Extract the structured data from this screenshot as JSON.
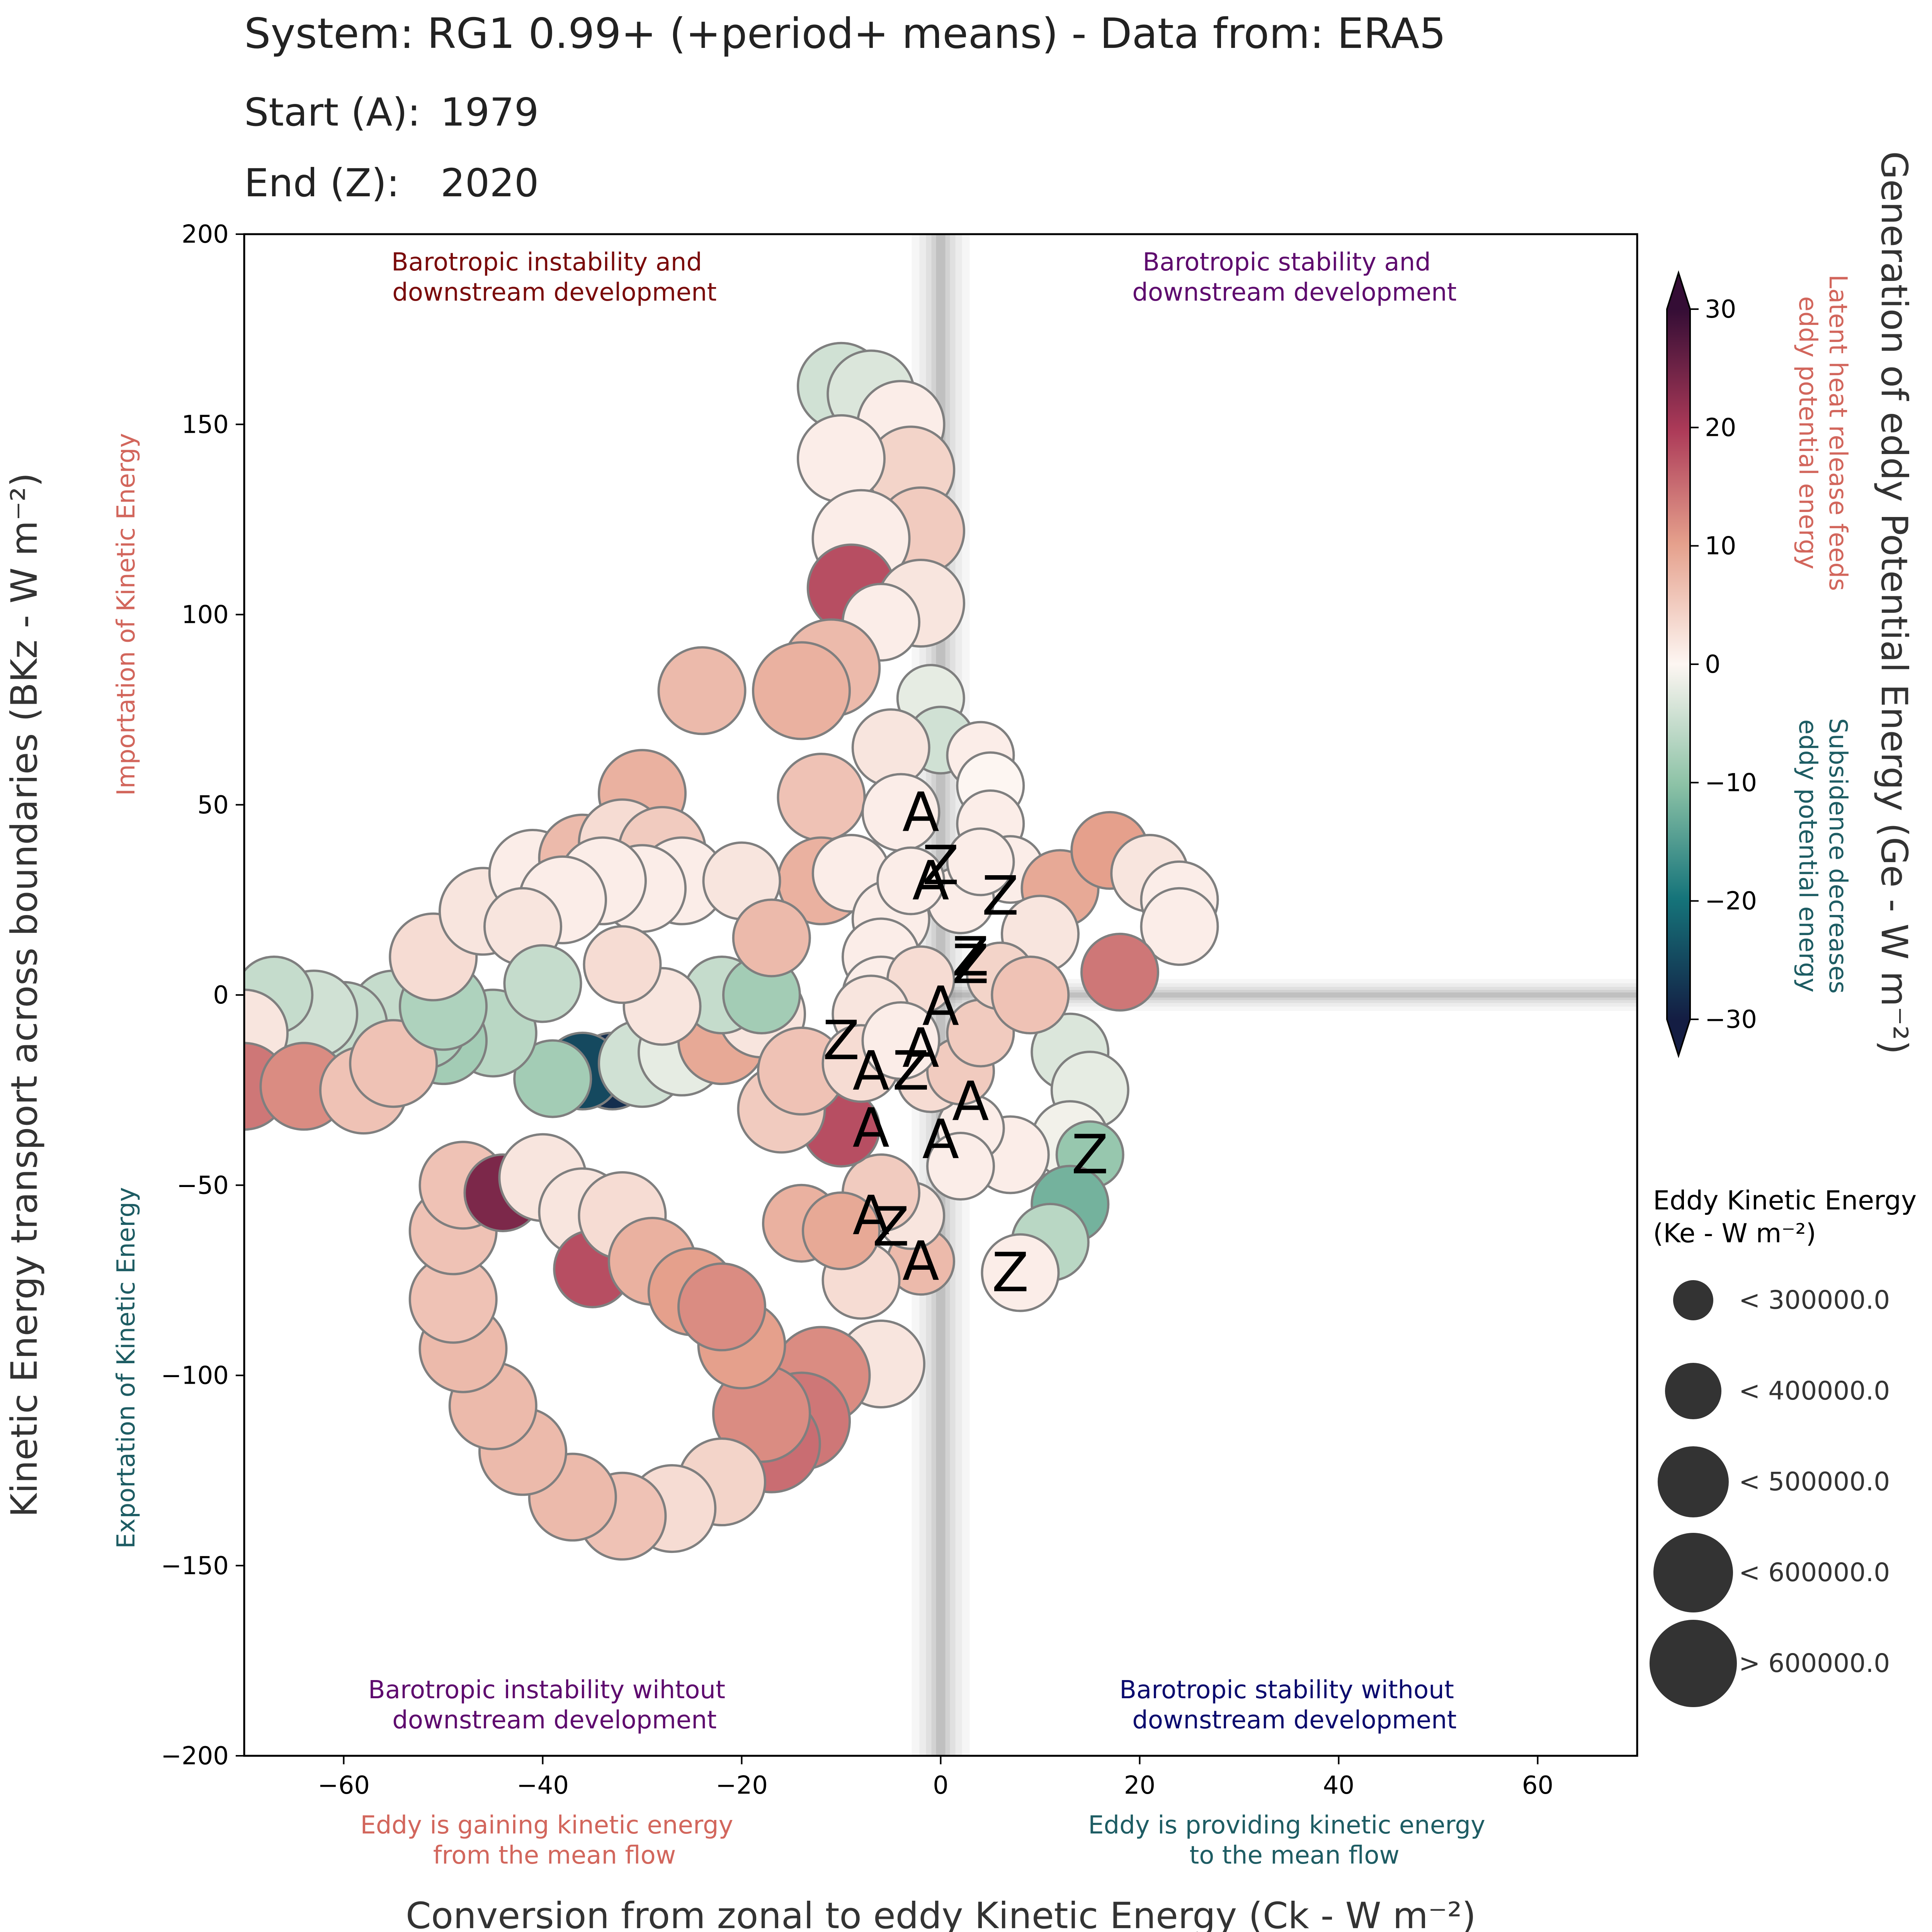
{
  "header": {
    "title": "System: RG1 0.99+ (+period+ means) - Data from: ERA5",
    "start_label": "Start (A):",
    "start_value": "1979",
    "end_label": "End (Z):",
    "end_value": "2020"
  },
  "chart_data": {
    "type": "scatter",
    "xlabel": "Conversion from zonal to eddy Kinetic Energy (Ck - W m⁻²)",
    "ylabel": "Kinetic Energy transport across boundaries (BKz - W m⁻²)",
    "xlim": [
      -70,
      70
    ],
    "ylim": [
      -200,
      200
    ],
    "x_ticks": [
      -60,
      -40,
      -20,
      0,
      20,
      40,
      60
    ],
    "x_tick_labels": [
      "−60",
      "−40",
      "−20",
      "0",
      "20",
      "40",
      "60"
    ],
    "y_ticks": [
      -200,
      -150,
      -100,
      -50,
      0,
      50,
      100,
      150,
      200
    ],
    "y_tick_labels": [
      "−200",
      "−150",
      "−100",
      "−50",
      "0",
      "50",
      "100",
      "150",
      "200"
    ],
    "grid": false,
    "quadrant_labels": {
      "top_left": [
        "Barotropic instability and",
        "downstream development"
      ],
      "top_right": [
        "Barotropic stability and",
        "downstream development"
      ],
      "bottom_left": [
        "Barotropic instability wihtout",
        "downstream development"
      ],
      "bottom_right": [
        "Barotropic stability without",
        "downstream development"
      ]
    },
    "side_labels": {
      "y_positive": "Importation of Kinetic Energy",
      "y_negative": "Exportation of Kinetic Energy",
      "x_negative": [
        "Eddy is gaining kinetic energy",
        "from the mean flow"
      ],
      "x_positive": [
        "Eddy is providing kinetic energy",
        "to the mean flow"
      ]
    },
    "colorbar": {
      "label": "Generation of eddy Potential Energy (Ge - W m⁻²)",
      "vmin": -30,
      "vmax": 30,
      "ticks": [
        -30,
        -20,
        -10,
        0,
        10,
        20,
        30
      ],
      "tick_labels": [
        "−30",
        "−20",
        "−10",
        "0",
        "10",
        "20",
        "30"
      ],
      "colormap": "curl (teal–white–red)",
      "positive_note": [
        "Latent heat release feeds",
        "eddy potential energy"
      ],
      "negative_note": [
        "Subsidence decreases",
        "eddy potential energy"
      ]
    },
    "size_legend": {
      "title": [
        "Eddy Kinetic Energy",
        "(Ke - W m⁻²)"
      ],
      "entries": [
        "< 300000.0",
        "< 400000.0",
        "< 500000.0",
        "< 600000.0",
        "> 600000.0"
      ]
    },
    "colors": {
      "positive_text": "#d2665c",
      "negative_text": "#1d5c63",
      "quad_top_left": "#7a0a0a",
      "quad_top_right": "#5e0a6e",
      "quad_bottom_left": "#5e0a6e",
      "quad_bottom_right": "#0a0a6e"
    },
    "series": [
      {
        "points": [
          {
            "x": -10,
            "y": 160,
            "ge": -4,
            "size": 4
          },
          {
            "x": -7,
            "y": 158,
            "ge": -3,
            "size": 4
          },
          {
            "x": -4,
            "y": 150,
            "ge": 1,
            "size": 4
          },
          {
            "x": -3,
            "y": 138,
            "ge": 4,
            "size": 4
          },
          {
            "x": -10,
            "y": 141,
            "ge": 1,
            "size": 4
          },
          {
            "x": -2,
            "y": 122,
            "ge": 5,
            "size": 4
          },
          {
            "x": -8,
            "y": 120,
            "ge": 1,
            "size": 5
          },
          {
            "x": -9,
            "y": 107,
            "ge": 18,
            "size": 4
          },
          {
            "x": -2,
            "y": 103,
            "ge": 2,
            "size": 4
          },
          {
            "x": -6,
            "y": 98,
            "ge": 1,
            "size": 3
          },
          {
            "x": -11,
            "y": 86,
            "ge": 7,
            "size": 5
          },
          {
            "x": -14,
            "y": 80,
            "ge": 8,
            "size": 5
          },
          {
            "x": -24,
            "y": 80,
            "ge": 7,
            "size": 4
          },
          {
            "x": -30,
            "y": 53,
            "ge": 8,
            "size": 4
          },
          {
            "x": -12,
            "y": 52,
            "ge": 6,
            "size": 4
          },
          {
            "x": -12,
            "y": 30,
            "ge": 8,
            "size": 4
          },
          {
            "x": -1,
            "y": 78,
            "ge": -2,
            "size": 2
          },
          {
            "x": 0,
            "y": 67,
            "ge": -4,
            "size": 2
          },
          {
            "x": -5,
            "y": 65,
            "ge": 2,
            "size": 3
          },
          {
            "x": -4,
            "y": 48,
            "ge": 1,
            "size": 3
          },
          {
            "x": 4,
            "y": 63,
            "ge": 1,
            "size": 2
          },
          {
            "x": 5,
            "y": 55,
            "ge": 0,
            "size": 2
          },
          {
            "x": 5,
            "y": 45,
            "ge": 1,
            "size": 2
          },
          {
            "x": 7,
            "y": 33,
            "ge": 1,
            "size": 2
          },
          {
            "x": 12,
            "y": 28,
            "ge": 9,
            "size": 3
          },
          {
            "x": 17,
            "y": 38,
            "ge": 10,
            "size": 3
          },
          {
            "x": 21,
            "y": 32,
            "ge": 2,
            "size": 3
          },
          {
            "x": 24,
            "y": 25,
            "ge": 1,
            "size": 3
          },
          {
            "x": 24,
            "y": 18,
            "ge": 1,
            "size": 3
          },
          {
            "x": 18,
            "y": 6,
            "ge": 14,
            "size": 3
          },
          {
            "x": 10,
            "y": 16,
            "ge": 2,
            "size": 3
          },
          {
            "x": 13,
            "y": -15,
            "ge": -3,
            "size": 3
          },
          {
            "x": 15,
            "y": -25,
            "ge": -2,
            "size": 3
          },
          {
            "x": 13,
            "y": -38,
            "ge": -1,
            "size": 3
          },
          {
            "x": 15,
            "y": -42,
            "ge": -9,
            "size": 2
          },
          {
            "x": 13,
            "y": -55,
            "ge": -12,
            "size": 3
          },
          {
            "x": 11,
            "y": -65,
            "ge": -6,
            "size": 3
          },
          {
            "x": 8,
            "y": -73,
            "ge": 1,
            "size": 3
          },
          {
            "x": 7,
            "y": -42,
            "ge": 1,
            "size": 3
          },
          {
            "x": 3,
            "y": -35,
            "ge": 1,
            "size": 2
          },
          {
            "x": 2,
            "y": -45,
            "ge": 1,
            "size": 2
          },
          {
            "x": -2,
            "y": -70,
            "ge": 7,
            "size": 2
          },
          {
            "x": -3,
            "y": -58,
            "ge": 2,
            "size": 2
          },
          {
            "x": -6,
            "y": -52,
            "ge": 5,
            "size": 3
          },
          {
            "x": -10,
            "y": -35,
            "ge": 18,
            "size": 3
          },
          {
            "x": -14,
            "y": -60,
            "ge": 8,
            "size": 3
          },
          {
            "x": -8,
            "y": -75,
            "ge": 3,
            "size": 3
          },
          {
            "x": -6,
            "y": -97,
            "ge": 2,
            "size": 4
          },
          {
            "x": -12,
            "y": -100,
            "ge": 12,
            "size": 5
          },
          {
            "x": -14,
            "y": -112,
            "ge": 14,
            "size": 5
          },
          {
            "x": -17,
            "y": -118,
            "ge": 15,
            "size": 5
          },
          {
            "x": -18,
            "y": -110,
            "ge": 12,
            "size": 5
          },
          {
            "x": -20,
            "y": -92,
            "ge": 10,
            "size": 4
          },
          {
            "x": -22,
            "y": -128,
            "ge": 4,
            "size": 4
          },
          {
            "x": -27,
            "y": -135,
            "ge": 3,
            "size": 4
          },
          {
            "x": -32,
            "y": -137,
            "ge": 6,
            "size": 4
          },
          {
            "x": -37,
            "y": -132,
            "ge": 7,
            "size": 4
          },
          {
            "x": -42,
            "y": -120,
            "ge": 7,
            "size": 4
          },
          {
            "x": -45,
            "y": -108,
            "ge": 7,
            "size": 4
          },
          {
            "x": -48,
            "y": -93,
            "ge": 7,
            "size": 4
          },
          {
            "x": -49,
            "y": -80,
            "ge": 6,
            "size": 4
          },
          {
            "x": -49,
            "y": -62,
            "ge": 6,
            "size": 4
          },
          {
            "x": -48,
            "y": -50,
            "ge": 6,
            "size": 4
          },
          {
            "x": -44,
            "y": -52,
            "ge": 24,
            "size": 3
          },
          {
            "x": -40,
            "y": -48,
            "ge": 2,
            "size": 4
          },
          {
            "x": -36,
            "y": -57,
            "ge": 2,
            "size": 4
          },
          {
            "x": -35,
            "y": -72,
            "ge": 18,
            "size": 3
          },
          {
            "x": -32,
            "y": -58,
            "ge": 3,
            "size": 4
          },
          {
            "x": -29,
            "y": -70,
            "ge": 8,
            "size": 4
          },
          {
            "x": -25,
            "y": -78,
            "ge": 10,
            "size": 4
          },
          {
            "x": -22,
            "y": -82,
            "ge": 12,
            "size": 4
          },
          {
            "x": -33,
            "y": -20,
            "ge": -28,
            "size": 3
          },
          {
            "x": -36,
            "y": -20,
            "ge": -25,
            "size": 3
          },
          {
            "x": -39,
            "y": -22,
            "ge": -8,
            "size": 3
          },
          {
            "x": -30,
            "y": -18,
            "ge": -4,
            "size": 4
          },
          {
            "x": -26,
            "y": -15,
            "ge": -2,
            "size": 4
          },
          {
            "x": -22,
            "y": -12,
            "ge": 9,
            "size": 4
          },
          {
            "x": -18,
            "y": -5,
            "ge": 2,
            "size": 4
          },
          {
            "x": -22,
            "y": 0,
            "ge": -5,
            "size": 3
          },
          {
            "x": -18,
            "y": 0,
            "ge": -8,
            "size": 3
          },
          {
            "x": -16,
            "y": -30,
            "ge": 5,
            "size": 4
          },
          {
            "x": -14,
            "y": -20,
            "ge": 6,
            "size": 4
          },
          {
            "x": -45,
            "y": -10,
            "ge": -6,
            "size": 4
          },
          {
            "x": -50,
            "y": -12,
            "ge": -8,
            "size": 4
          },
          {
            "x": -52,
            "y": -8,
            "ge": -7,
            "size": 4
          },
          {
            "x": -55,
            "y": -5,
            "ge": -5,
            "size": 4
          },
          {
            "x": -60,
            "y": -8,
            "ge": -5,
            "size": 4
          },
          {
            "x": -63,
            "y": -5,
            "ge": -4,
            "size": 4
          },
          {
            "x": -67,
            "y": 0,
            "ge": -5,
            "size": 3
          },
          {
            "x": -70,
            "y": -10,
            "ge": 2,
            "size": 4
          },
          {
            "x": -70,
            "y": -24,
            "ge": 14,
            "size": 4
          },
          {
            "x": -64,
            "y": -24,
            "ge": 12,
            "size": 4
          },
          {
            "x": -58,
            "y": -25,
            "ge": 6,
            "size": 4
          },
          {
            "x": -55,
            "y": -18,
            "ge": 6,
            "size": 4
          },
          {
            "x": -50,
            "y": -3,
            "ge": -7,
            "size": 4
          },
          {
            "x": -51,
            "y": 10,
            "ge": 3,
            "size": 4
          },
          {
            "x": -46,
            "y": 22,
            "ge": 2,
            "size": 4
          },
          {
            "x": -41,
            "y": 32,
            "ge": 1,
            "size": 4
          },
          {
            "x": -36,
            "y": 36,
            "ge": 7,
            "size": 4
          },
          {
            "x": -32,
            "y": 40,
            "ge": 3,
            "size": 4
          },
          {
            "x": -28,
            "y": 38,
            "ge": 5,
            "size": 4
          },
          {
            "x": -26,
            "y": 30,
            "ge": 1,
            "size": 4
          },
          {
            "x": -30,
            "y": 28,
            "ge": 1,
            "size": 4
          },
          {
            "x": -34,
            "y": 30,
            "ge": 1,
            "size": 4
          },
          {
            "x": -38,
            "y": 25,
            "ge": 1,
            "size": 4
          },
          {
            "x": -42,
            "y": 18,
            "ge": 2,
            "size": 3
          },
          {
            "x": -20,
            "y": 30,
            "ge": 2,
            "size": 3
          },
          {
            "x": -17,
            "y": 15,
            "ge": 7,
            "size": 3
          },
          {
            "x": -9,
            "y": 32,
            "ge": 1,
            "size": 3
          },
          {
            "x": -5,
            "y": 20,
            "ge": 1,
            "size": 3
          },
          {
            "x": -6,
            "y": 10,
            "ge": 1,
            "size": 3
          },
          {
            "x": -6,
            "y": 0,
            "ge": 1,
            "size": 3
          },
          {
            "x": -2,
            "y": 4,
            "ge": 3,
            "size": 2
          },
          {
            "x": -1,
            "y": -22,
            "ge": 3,
            "size": 2
          },
          {
            "x": 2,
            "y": -20,
            "ge": 5,
            "size": 2
          },
          {
            "x": 4,
            "y": -10,
            "ge": 5,
            "size": 2
          },
          {
            "x": 6,
            "y": 5,
            "ge": 4,
            "size": 2
          },
          {
            "x": 9,
            "y": 0,
            "ge": 6,
            "size": 3
          },
          {
            "x": 2,
            "y": 25,
            "ge": 1,
            "size": 2
          },
          {
            "x": 4,
            "y": 35,
            "ge": 1,
            "size": 2
          },
          {
            "x": -3,
            "y": 30,
            "ge": 1,
            "size": 2
          },
          {
            "x": -7,
            "y": -5,
            "ge": 2,
            "size": 3
          },
          {
            "x": -8,
            "y": -18,
            "ge": 3,
            "size": 3
          },
          {
            "x": -4,
            "y": -12,
            "ge": 1,
            "size": 3
          },
          {
            "x": -10,
            "y": -62,
            "ge": 9,
            "size": 3
          },
          {
            "x": -28,
            "y": -3,
            "ge": 2,
            "size": 3
          },
          {
            "x": -40,
            "y": 3,
            "ge": -5,
            "size": 3
          },
          {
            "x": -32,
            "y": 8,
            "ge": 3,
            "size": 3
          }
        ]
      }
    ],
    "marker_labels": [
      {
        "text": "A",
        "x": -2,
        "y": 48
      },
      {
        "text": "Z",
        "x": 0,
        "y": 34
      },
      {
        "text": "A",
        "x": -1,
        "y": 30
      },
      {
        "text": "Z",
        "x": 6,
        "y": 26
      },
      {
        "text": "Z",
        "x": 3,
        "y": 10
      },
      {
        "text": "Z",
        "x": 3,
        "y": 8
      },
      {
        "text": "A",
        "x": 0,
        "y": -3
      },
      {
        "text": "Z",
        "x": -10,
        "y": -12
      },
      {
        "text": "A",
        "x": -2,
        "y": -14
      },
      {
        "text": "A",
        "x": -7,
        "y": -20
      },
      {
        "text": "Z",
        "x": -3,
        "y": -20
      },
      {
        "text": "A",
        "x": 3,
        "y": -28
      },
      {
        "text": "A",
        "x": -7,
        "y": -35
      },
      {
        "text": "A",
        "x": 0,
        "y": -38
      },
      {
        "text": "Z",
        "x": 15,
        "y": -42
      },
      {
        "text": "A",
        "x": -7,
        "y": -58
      },
      {
        "text": "Z",
        "x": -5,
        "y": -61
      },
      {
        "text": "A",
        "x": -2,
        "y": -70
      },
      {
        "text": "Z",
        "x": 7,
        "y": -73
      }
    ]
  }
}
